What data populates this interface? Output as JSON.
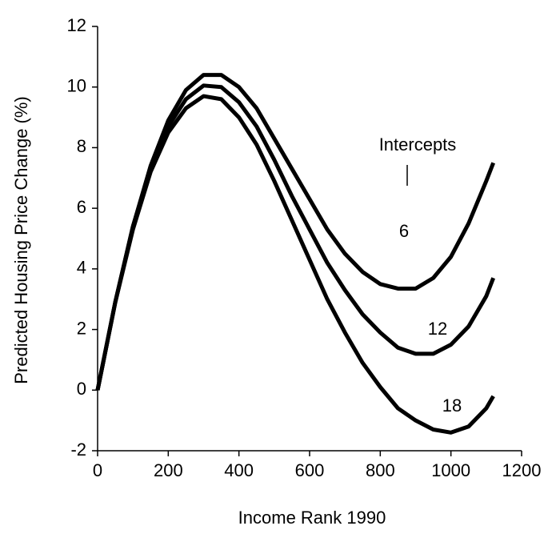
{
  "chart_data": {
    "type": "line",
    "x_label": "Income Rank 1990",
    "y_label": "Predicted Housing Price Change (%)",
    "annotation": "Intercepts",
    "x": [
      0,
      50,
      100,
      150,
      200,
      250,
      300,
      350,
      400,
      450,
      500,
      550,
      600,
      650,
      700,
      750,
      800,
      850,
      900,
      950,
      1000,
      1050,
      1100,
      1120
    ],
    "series": [
      {
        "name": "6",
        "color": "#000000",
        "values": [
          0,
          2.9,
          5.4,
          7.4,
          8.9,
          9.9,
          10.4,
          10.4,
          10.0,
          9.3,
          8.3,
          7.3,
          6.3,
          5.3,
          4.5,
          3.9,
          3.5,
          3.35,
          3.35,
          3.7,
          4.4,
          5.5,
          6.9,
          7.5
        ]
      },
      {
        "name": "12",
        "color": "#000000",
        "values": [
          0,
          2.9,
          5.4,
          7.3,
          8.7,
          9.6,
          10.05,
          10.0,
          9.5,
          8.7,
          7.6,
          6.4,
          5.3,
          4.2,
          3.3,
          2.5,
          1.9,
          1.4,
          1.2,
          1.2,
          1.5,
          2.1,
          3.1,
          3.7
        ]
      },
      {
        "name": "18",
        "color": "#000000",
        "values": [
          0,
          2.9,
          5.3,
          7.2,
          8.5,
          9.3,
          9.7,
          9.6,
          9.0,
          8.1,
          6.9,
          5.6,
          4.3,
          3.0,
          1.9,
          0.9,
          0.1,
          -0.6,
          -1.0,
          -1.3,
          -1.4,
          -1.2,
          -0.6,
          -0.2
        ]
      }
    ],
    "xlim": [
      0,
      1200
    ],
    "xticks": [
      0,
      200,
      400,
      600,
      800,
      1000,
      1200
    ],
    "ylim": [
      -2,
      12
    ],
    "yticks": [
      -2,
      0,
      2,
      4,
      6,
      8,
      10,
      12
    ],
    "grid": false
  }
}
